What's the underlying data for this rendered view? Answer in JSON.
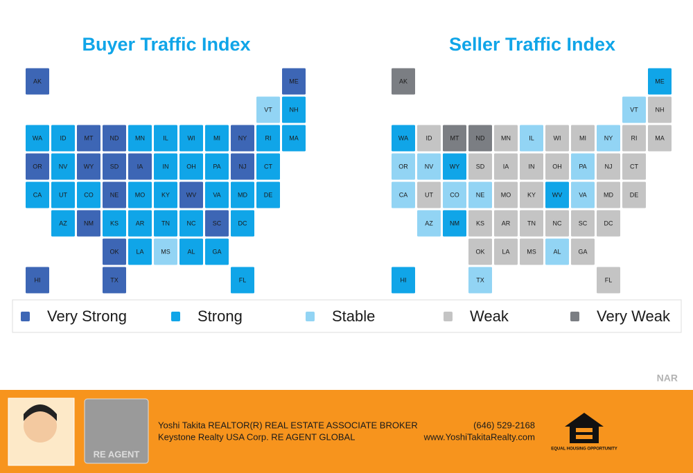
{
  "legend": [
    {
      "label": "Very Strong",
      "color": "#3d66b5"
    },
    {
      "label": "Strong",
      "color": "#10a5e8"
    },
    {
      "label": "Stable",
      "color": "#92d4f4"
    },
    {
      "label": "Weak",
      "color": "#c4c4c4"
    },
    {
      "label": "Very Weak",
      "color": "#7b7e83"
    }
  ],
  "maps": [
    {
      "title": "Buyer Traffic Index",
      "states": [
        {
          "label": "AK",
          "level": 0
        },
        {
          "label": "ME",
          "level": 0
        },
        {
          "label": "VT",
          "level": 2
        },
        {
          "label": "NH",
          "level": 1
        },
        {
          "label": "WA",
          "level": 1
        },
        {
          "label": "ID",
          "level": 1
        },
        {
          "label": "MT",
          "level": 0
        },
        {
          "label": "ND",
          "level": 0
        },
        {
          "label": "MN",
          "level": 1
        },
        {
          "label": "IL",
          "level": 1
        },
        {
          "label": "WI",
          "level": 1
        },
        {
          "label": "MI",
          "level": 1
        },
        {
          "label": "NY",
          "level": 0
        },
        {
          "label": "RI",
          "level": 1
        },
        {
          "label": "MA",
          "level": 1
        },
        {
          "label": "OR",
          "level": 0
        },
        {
          "label": "NV",
          "level": 1
        },
        {
          "label": "WY",
          "level": 0
        },
        {
          "label": "SD",
          "level": 0
        },
        {
          "label": "IA",
          "level": 0
        },
        {
          "label": "IN",
          "level": 1
        },
        {
          "label": "OH",
          "level": 1
        },
        {
          "label": "PA",
          "level": 1
        },
        {
          "label": "NJ",
          "level": 0
        },
        {
          "label": "CT",
          "level": 1
        },
        {
          "label": "CA",
          "level": 1
        },
        {
          "label": "UT",
          "level": 1
        },
        {
          "label": "CO",
          "level": 1
        },
        {
          "label": "NE",
          "level": 0
        },
        {
          "label": "MO",
          "level": 1
        },
        {
          "label": "KY",
          "level": 1
        },
        {
          "label": "WV",
          "level": 0
        },
        {
          "label": "VA",
          "level": 1
        },
        {
          "label": "MD",
          "level": 1
        },
        {
          "label": "DE",
          "level": 1
        },
        {
          "label": "AZ",
          "level": 1
        },
        {
          "label": "NM",
          "level": 0
        },
        {
          "label": "KS",
          "level": 1
        },
        {
          "label": "AR",
          "level": 1
        },
        {
          "label": "TN",
          "level": 1
        },
        {
          "label": "NC",
          "level": 1
        },
        {
          "label": "SC",
          "level": 0
        },
        {
          "label": "DC",
          "level": 1
        },
        {
          "label": "OK",
          "level": 0
        },
        {
          "label": "LA",
          "level": 1
        },
        {
          "label": "MS",
          "level": 2
        },
        {
          "label": "AL",
          "level": 1
        },
        {
          "label": "GA",
          "level": 1
        },
        {
          "label": "HI",
          "level": 0
        },
        {
          "label": "TX",
          "level": 0
        },
        {
          "label": "FL",
          "level": 1
        }
      ]
    },
    {
      "title": "Seller Traffic Index",
      "states": [
        {
          "label": "AK",
          "level": 4
        },
        {
          "label": "ME",
          "level": 1
        },
        {
          "label": "VT",
          "level": 2
        },
        {
          "label": "NH",
          "level": 3
        },
        {
          "label": "WA",
          "level": 1
        },
        {
          "label": "ID",
          "level": 3
        },
        {
          "label": "MT",
          "level": 4
        },
        {
          "label": "ND",
          "level": 4
        },
        {
          "label": "MN",
          "level": 3
        },
        {
          "label": "IL",
          "level": 2
        },
        {
          "label": "WI",
          "level": 3
        },
        {
          "label": "MI",
          "level": 3
        },
        {
          "label": "NY",
          "level": 2
        },
        {
          "label": "RI",
          "level": 3
        },
        {
          "label": "MA",
          "level": 3
        },
        {
          "label": "OR",
          "level": 2
        },
        {
          "label": "NV",
          "level": 2
        },
        {
          "label": "WY",
          "level": 1
        },
        {
          "label": "SD",
          "level": 3
        },
        {
          "label": "IA",
          "level": 3
        },
        {
          "label": "IN",
          "level": 3
        },
        {
          "label": "OH",
          "level": 3
        },
        {
          "label": "PA",
          "level": 2
        },
        {
          "label": "NJ",
          "level": 3
        },
        {
          "label": "CT",
          "level": 3
        },
        {
          "label": "CA",
          "level": 2
        },
        {
          "label": "UT",
          "level": 3
        },
        {
          "label": "CO",
          "level": 2
        },
        {
          "label": "NE",
          "level": 2
        },
        {
          "label": "MO",
          "level": 3
        },
        {
          "label": "KY",
          "level": 3
        },
        {
          "label": "WV",
          "level": 1
        },
        {
          "label": "VA",
          "level": 2
        },
        {
          "label": "MD",
          "level": 3
        },
        {
          "label": "DE",
          "level": 3
        },
        {
          "label": "AZ",
          "level": 2
        },
        {
          "label": "NM",
          "level": 1
        },
        {
          "label": "KS",
          "level": 3
        },
        {
          "label": "AR",
          "level": 3
        },
        {
          "label": "TN",
          "level": 3
        },
        {
          "label": "NC",
          "level": 3
        },
        {
          "label": "SC",
          "level": 3
        },
        {
          "label": "DC",
          "level": 3
        },
        {
          "label": "OK",
          "level": 3
        },
        {
          "label": "LA",
          "level": 3
        },
        {
          "label": "MS",
          "level": 3
        },
        {
          "label": "AL",
          "level": 2
        },
        {
          "label": "GA",
          "level": 3
        },
        {
          "label": "HI",
          "level": 1
        },
        {
          "label": "TX",
          "level": 2
        },
        {
          "label": "FL",
          "level": 3
        }
      ]
    }
  ],
  "source": "NAR",
  "footer": {
    "line1": "Yoshi Takita REALTOR(R) REAL ESTATE ASSOCIATE BROKER",
    "line2": "Keystone Realty USA Corp.  RE AGENT GLOBAL",
    "phone": "(646) 529-2168",
    "website": "www.YoshiTakitaRealty.com",
    "logo": "RE AGENT",
    "housing": "EQUAL HOUSING OPPORTUNITY"
  }
}
